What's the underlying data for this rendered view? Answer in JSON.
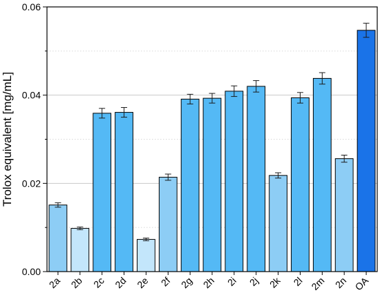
{
  "chart_data": {
    "type": "bar",
    "title": "",
    "xlabel": "",
    "ylabel": "Trolox equivalent [mg/mL]",
    "ylim": [
      0,
      0.06
    ],
    "yticks": [
      "0.00",
      "0.02",
      "0.04",
      "0.06"
    ],
    "grid": "horizontal dotted",
    "categories": [
      "2a",
      "2b",
      "2c",
      "2d",
      "2e",
      "2f",
      "2g",
      "2h",
      "2i",
      "2j",
      "2k",
      "2l",
      "2m",
      "2n",
      "OA"
    ],
    "values": [
      0.0151,
      0.0098,
      0.0359,
      0.0361,
      0.0073,
      0.0214,
      0.0391,
      0.0393,
      0.0409,
      0.042,
      0.0218,
      0.0394,
      0.0438,
      0.0256,
      0.0547
    ],
    "errors": [
      0.0005,
      0.0003,
      0.0011,
      0.0011,
      0.0003,
      0.0007,
      0.0011,
      0.0011,
      0.0012,
      0.0013,
      0.0006,
      0.0012,
      0.0013,
      0.0008,
      0.0016
    ],
    "bar_colors": [
      "#8dcdf5",
      "#c3e6fb",
      "#54b9f5",
      "#54b9f5",
      "#c3e6fb",
      "#8dcdf5",
      "#54b9f5",
      "#54b9f5",
      "#54b9f5",
      "#54b9f5",
      "#8dcdf5",
      "#54b9f5",
      "#54b9f5",
      "#8dcdf5",
      "#1a73e8"
    ]
  }
}
